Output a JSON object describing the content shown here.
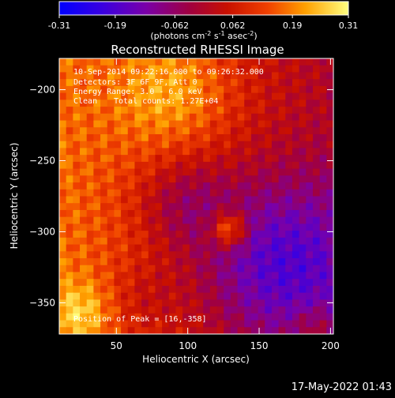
{
  "chart_data": {
    "type": "heatmap",
    "title": "Reconstructed RHESSI Image",
    "xlabel": "Heliocentric X (arcsec)",
    "ylabel": "Heliocentric Y (arcsec)",
    "xlim": [
      10,
      202
    ],
    "ylim": [
      -372,
      -178
    ],
    "xticks": [
      50,
      100,
      150,
      200
    ],
    "yticks": [
      -200,
      -250,
      -300,
      -350
    ],
    "colorbar": {
      "min": -0.31,
      "max": 0.31,
      "ticks": [
        -0.31,
        -0.19,
        -0.062,
        0.062,
        0.19,
        0.31
      ],
      "tick_labels": [
        "-0.31",
        "-0.19",
        "-0.062",
        "0.062",
        "0.19",
        "0.31"
      ],
      "unit_label": "(photons cm",
      "unit_exp1": "-2",
      "unit_s": " s",
      "unit_exp2": "-1",
      "unit_asec": " asec",
      "unit_exp3": "-2",
      "unit_close": ")"
    },
    "peak": [
      16,
      -358
    ],
    "grid": false,
    "legend": "none"
  },
  "annotations": {
    "time_range": "10-Sep-2014 09:22:16.000 to 09:26:32.000",
    "detectors": "Detectors: 3F 6F 9F, Att 0",
    "energy": "Energy Range: 3.0 - 6.0 keV",
    "method": "Clean",
    "counts": "Total counts: 1.27E+04",
    "peak_text": "Position of Peak = [16,-358]"
  },
  "footer": {
    "timestamp": "17-May-2022 01:43"
  }
}
